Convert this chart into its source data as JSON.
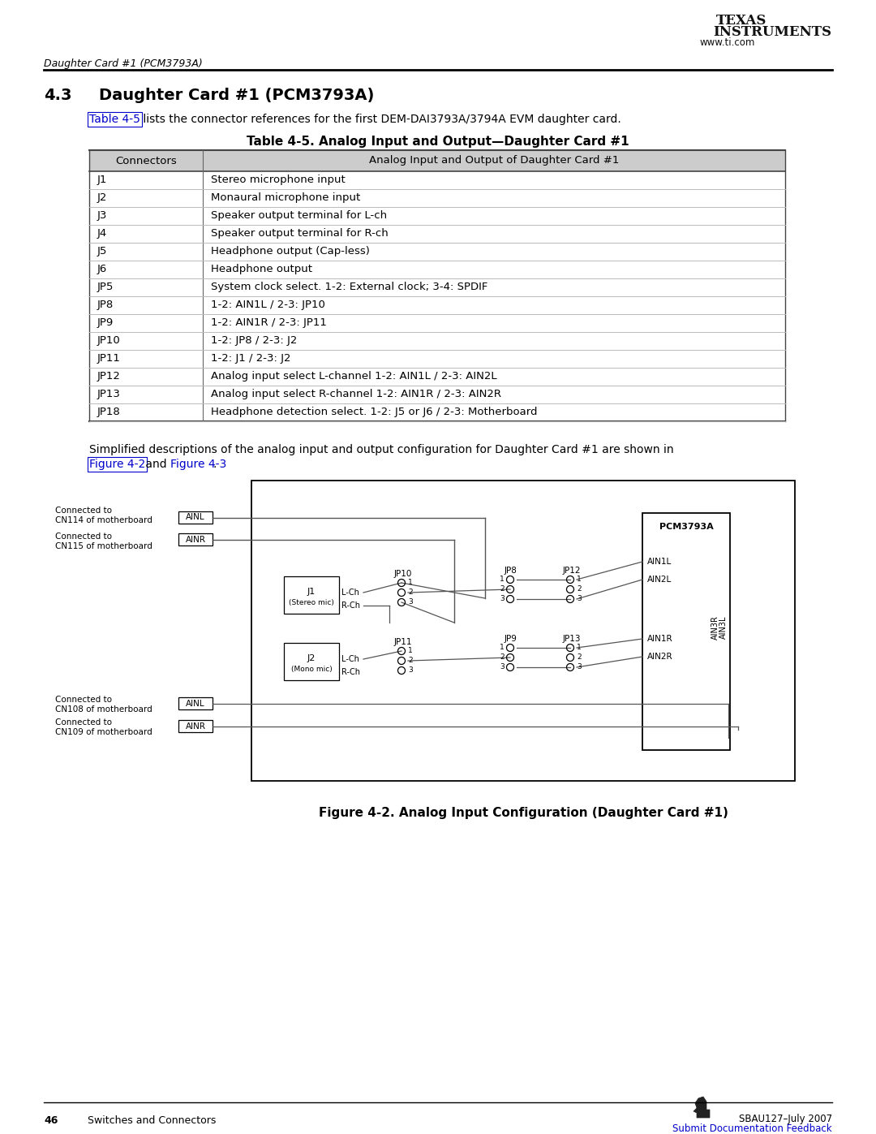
{
  "page_title_italic": "Daughter Card #1 (PCM3793A)",
  "section_number": "4.3",
  "section_title": "Daughter Card #1 (PCM3793A)",
  "intro_text": " lists the connector references for the first DEM-DAI3793A/3794A EVM daughter card.",
  "table_title": "Table 4-5. Analog Input and Output—Daughter Card #1",
  "table_link": "Table 4-5",
  "col1_header": "Connectors",
  "col2_header": "Analog Input and Output of Daughter Card #1",
  "table_rows": [
    [
      "J1",
      "Stereo microphone input"
    ],
    [
      "J2",
      "Monaural microphone input"
    ],
    [
      "J3",
      "Speaker output terminal for L-ch"
    ],
    [
      "J4",
      "Speaker output terminal for R-ch"
    ],
    [
      "J5",
      "Headphone output (Cap-less)"
    ],
    [
      "J6",
      "Headphone output"
    ],
    [
      "JP5",
      "System clock select. 1-2: External clock; 3-4: SPDIF"
    ],
    [
      "JP8",
      "1-2: AIN1L / 2-3: JP10"
    ],
    [
      "JP9",
      "1-2: AIN1R / 2-3: JP11"
    ],
    [
      "JP10",
      "1-2: JP8 / 2-3: J2"
    ],
    [
      "JP11",
      "1-2: J1 / 2-3: J2"
    ],
    [
      "JP12",
      "Analog input select L-channel 1-2: AIN1L / 2-3: AIN2L"
    ],
    [
      "JP13",
      "Analog input select R-channel 1-2: AIN1R / 2-3: AIN2R"
    ],
    [
      "JP18",
      "Headphone detection select. 1-2: J5 or J6 / 2-3: Motherboard"
    ]
  ],
  "simplified_text1": "Simplified descriptions of the analog input and output configuration for Daughter Card #1 are shown in",
  "simplified_text2": " and ",
  "simplified_text3": ".",
  "figure_link1": "Figure 4-2",
  "figure_link2": "Figure 4-3",
  "figure_caption": "Figure 4-2. Analog Input Configuration (Daughter Card #1)",
  "footer_left1": "46",
  "footer_left2": "Switches and Connectors",
  "footer_right1": "SBAU127–July 2007",
  "footer_right2": "Submit Documentation Feedback",
  "ti_logo_text1": "TEXAS",
  "ti_logo_text2": "INSTRUMENTS",
  "ti_logo_url": "www.ti.com",
  "bg_color": "#ffffff",
  "text_color": "#000000",
  "link_color": "#0000cc",
  "table_header_bg": "#cccccc",
  "gray_line": "#999999"
}
